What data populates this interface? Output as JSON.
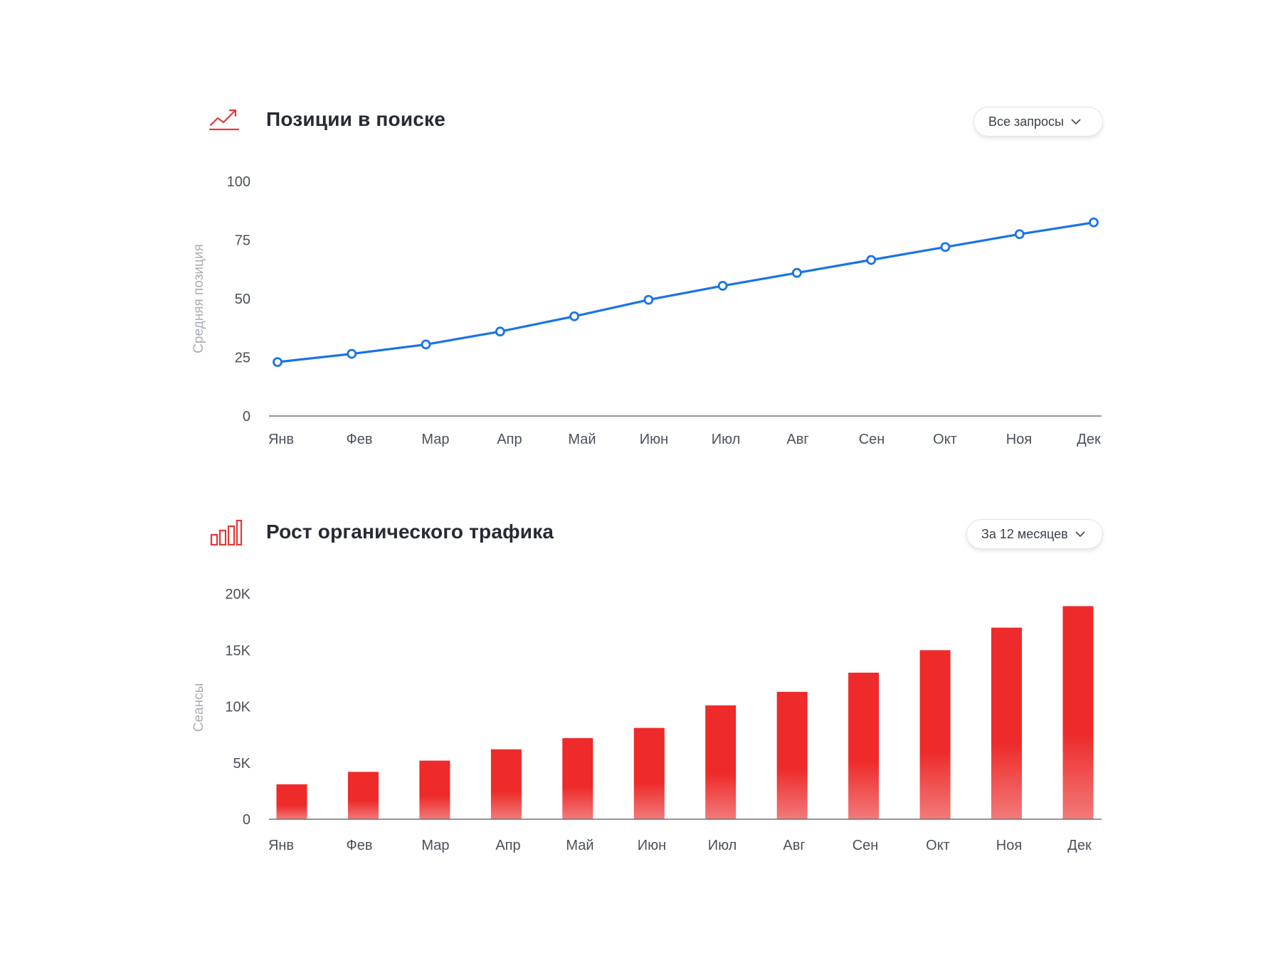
{
  "positions_panel": {
    "title": "Позиции в поиске",
    "filter_label": "Все запросы",
    "icon": "trend-line-icon"
  },
  "traffic_panel": {
    "title": "Рост органического трафика",
    "filter_label": "За 12 месяцев",
    "icon": "bar-chart-icon"
  },
  "colors": {
    "line": "#1a73e8",
    "bar_top": "#ee2a2a",
    "bar_bottom": "#f27a7a",
    "icon_red": "#e53935"
  },
  "chart_data": [
    {
      "type": "line",
      "categories": [
        "Янв",
        "Фев",
        "Мар",
        "Апр",
        "Май",
        "Июн",
        "Июл",
        "Авг",
        "Сен",
        "Окт",
        "Ноя",
        "Дек"
      ],
      "series": [
        {
          "values": [
            23,
            26.5,
            30.5,
            36,
            42.5,
            49.5,
            55.5,
            61,
            66.5,
            72,
            77.5,
            82.5
          ]
        }
      ],
      "ylabel": "Средняя позиция",
      "ylim": [
        0,
        100
      ],
      "yticks": [
        "0",
        "25",
        "50",
        "75",
        "100"
      ],
      "ytick_values": [
        0,
        25,
        50,
        75,
        100
      ],
      "grid": false,
      "markers": "hollow-circle"
    },
    {
      "type": "bar",
      "categories": [
        "Янв",
        "Фев",
        "Мар",
        "Апр",
        "Май",
        "Июн",
        "Июл",
        "Авг",
        "Сен",
        "Окт",
        "Ноя",
        "Дек"
      ],
      "values": [
        3100,
        4200,
        5200,
        6200,
        7200,
        8100,
        10100,
        11300,
        13000,
        15000,
        17000,
        18900
      ],
      "ylabel": "Сеансы",
      "ylim": [
        0,
        20000
      ],
      "yticks": [
        "0",
        "5K",
        "10K",
        "15K",
        "20K"
      ],
      "ytick_values": [
        0,
        5000,
        10000,
        15000,
        20000
      ],
      "grid": false
    }
  ]
}
